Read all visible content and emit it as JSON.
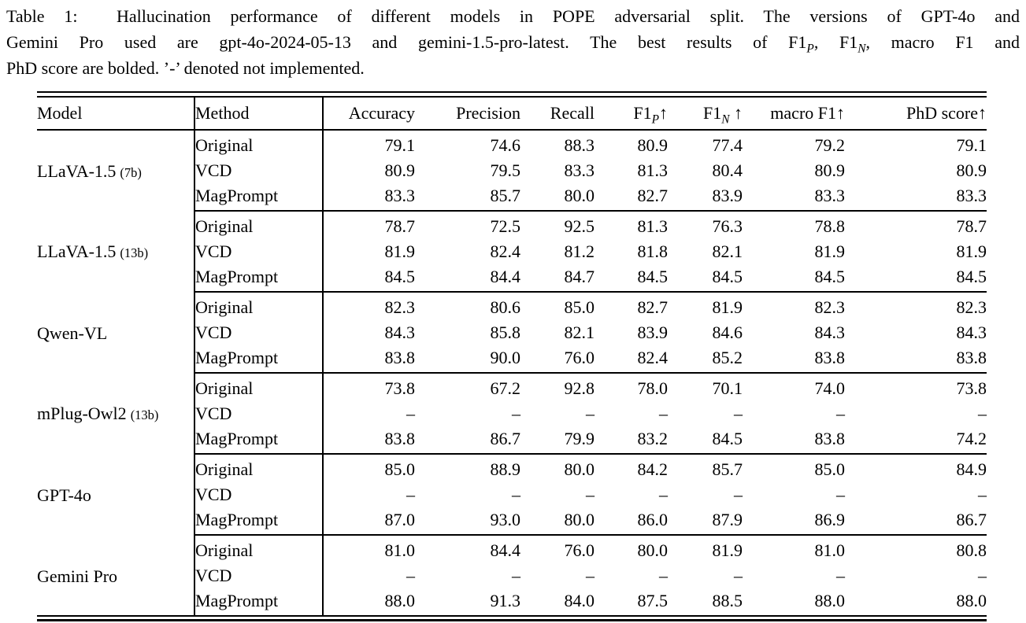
{
  "colors": {
    "text": "#000000",
    "background": "#ffffff",
    "rule": "#000000"
  },
  "caption": {
    "lines": [
      [
        {
          "t": "Table 1:  Hallucination performance of different models in POPE adversarial split. The versions of GPT-4o and"
        }
      ],
      [
        {
          "t": "Gemini Pro used are gpt-4o-2024-05-13 and gemini-1.5-pro-latest. The best results of F1"
        },
        {
          "t": "P",
          "sub": true
        },
        {
          "t": ", F1"
        },
        {
          "t": "N",
          "sub": true
        },
        {
          "t": ", macro F1 and"
        }
      ],
      [
        {
          "t": "PhD score are bolded. ’-’ denoted not implemented."
        }
      ]
    ]
  },
  "table": {
    "columns": [
      {
        "key": "model",
        "label": "Model",
        "align": "left"
      },
      {
        "key": "method",
        "label": "Method",
        "align": "left"
      },
      {
        "key": "accuracy",
        "label": "Accuracy",
        "align": "right"
      },
      {
        "key": "precision",
        "label": "Precision",
        "align": "right"
      },
      {
        "key": "recall",
        "label": "Recall",
        "align": "right"
      },
      {
        "key": "f1p",
        "label": "F1",
        "sub": "P",
        "arrow": "↑",
        "align": "right"
      },
      {
        "key": "f1n",
        "label": "F1",
        "sub": "N",
        "arrow": " ↑",
        "align": "right"
      },
      {
        "key": "macro_f1",
        "label": "macro F1",
        "arrow": "↑",
        "align": "right"
      },
      {
        "key": "phd_score",
        "label": "PhD score",
        "arrow": "↑",
        "align": "right"
      }
    ],
    "groups": [
      {
        "model": "LLaVA-1.5",
        "model_note": "(7b)",
        "rows": [
          {
            "method": "Original",
            "values": [
              "79.1",
              "74.6",
              "88.3",
              "80.9",
              "77.4",
              "79.2",
              "79.1"
            ],
            "bold": [
              false,
              false,
              false,
              false,
              false,
              false,
              false
            ]
          },
          {
            "method": "VCD",
            "values": [
              "80.9",
              "79.5",
              "83.3",
              "81.3",
              "80.4",
              "80.9",
              "80.9"
            ],
            "bold": [
              false,
              false,
              false,
              false,
              false,
              false,
              false
            ]
          },
          {
            "method": "MagPrompt",
            "values": [
              "83.3",
              "85.7",
              "80.0",
              "82.7",
              "83.9",
              "83.3",
              "83.3"
            ],
            "bold": [
              false,
              false,
              false,
              true,
              true,
              true,
              true
            ]
          }
        ]
      },
      {
        "model": "LLaVA-1.5",
        "model_note": "(13b)",
        "rows": [
          {
            "method": "Original",
            "values": [
              "78.7",
              "72.5",
              "92.5",
              "81.3",
              "76.3",
              "78.8",
              "78.7"
            ],
            "bold": [
              false,
              false,
              false,
              false,
              false,
              false,
              false
            ]
          },
          {
            "method": "VCD",
            "values": [
              "81.9",
              "82.4",
              "81.2",
              "81.8",
              "82.1",
              "81.9",
              "81.9"
            ],
            "bold": [
              false,
              false,
              false,
              false,
              false,
              false,
              false
            ]
          },
          {
            "method": "MagPrompt",
            "values": [
              "84.5",
              "84.4",
              "84.7",
              "84.5",
              "84.5",
              "84.5",
              "84.5"
            ],
            "bold": [
              false,
              false,
              false,
              true,
              true,
              true,
              true
            ]
          }
        ]
      },
      {
        "model": "Qwen-VL",
        "model_note": "",
        "rows": [
          {
            "method": "Original",
            "values": [
              "82.3",
              "80.6",
              "85.0",
              "82.7",
              "81.9",
              "82.3",
              "82.3"
            ],
            "bold": [
              false,
              false,
              false,
              false,
              false,
              false,
              false
            ]
          },
          {
            "method": "VCD",
            "values": [
              "84.3",
              "85.8",
              "82.1",
              "83.9",
              "84.6",
              "84.3",
              "84.3"
            ],
            "bold": [
              false,
              false,
              false,
              true,
              false,
              true,
              true
            ]
          },
          {
            "method": "MagPrompt",
            "values": [
              "83.8",
              "90.0",
              "76.0",
              "82.4",
              "85.2",
              "83.8",
              "83.8"
            ],
            "bold": [
              false,
              false,
              false,
              false,
              true,
              false,
              false
            ]
          }
        ]
      },
      {
        "model": "mPlug-Owl2",
        "model_note": "(13b)",
        "rows": [
          {
            "method": "Original",
            "values": [
              "73.8",
              "67.2",
              "92.8",
              "78.0",
              "70.1",
              "74.0",
              "73.8"
            ],
            "bold": [
              false,
              false,
              false,
              false,
              false,
              false,
              false
            ]
          },
          {
            "method": "VCD",
            "values": [
              "–",
              "–",
              "–",
              "–",
              "–",
              "–",
              "–"
            ],
            "bold": [
              false,
              false,
              false,
              false,
              false,
              false,
              false
            ]
          },
          {
            "method": "MagPrompt",
            "values": [
              "83.8",
              "86.7",
              "79.9",
              "83.2",
              "84.5",
              "83.8",
              "74.2"
            ],
            "bold": [
              false,
              false,
              false,
              true,
              true,
              true,
              true
            ]
          }
        ]
      },
      {
        "model": "GPT-4o",
        "model_note": "",
        "rows": [
          {
            "method": "Original",
            "values": [
              "85.0",
              "88.9",
              "80.0",
              "84.2",
              "85.7",
              "85.0",
              "84.9"
            ],
            "bold": [
              false,
              false,
              false,
              false,
              false,
              false,
              false
            ]
          },
          {
            "method": "VCD",
            "values": [
              "–",
              "–",
              "–",
              "–",
              "–",
              "–",
              "–"
            ],
            "bold": [
              false,
              false,
              false,
              false,
              false,
              false,
              false
            ]
          },
          {
            "method": "MagPrompt",
            "values": [
              "87.0",
              "93.0",
              "80.0",
              "86.0",
              "87.9",
              "86.9",
              "86.7"
            ],
            "bold": [
              false,
              false,
              false,
              true,
              true,
              true,
              true
            ]
          }
        ]
      },
      {
        "model": "Gemini Pro",
        "model_note": "",
        "rows": [
          {
            "method": "Original",
            "values": [
              "81.0",
              "84.4",
              "76.0",
              "80.0",
              "81.9",
              "81.0",
              "80.8"
            ],
            "bold": [
              false,
              false,
              false,
              false,
              false,
              false,
              false
            ]
          },
          {
            "method": "VCD",
            "values": [
              "–",
              "–",
              "–",
              "–",
              "–",
              "–",
              "–"
            ],
            "bold": [
              false,
              false,
              false,
              false,
              false,
              false,
              false
            ]
          },
          {
            "method": "MagPrompt",
            "values": [
              "88.0",
              "91.3",
              "84.0",
              "87.5",
              "88.5",
              "88.0",
              "88.0"
            ],
            "bold": [
              false,
              false,
              false,
              true,
              true,
              true,
              true
            ]
          }
        ]
      }
    ]
  }
}
